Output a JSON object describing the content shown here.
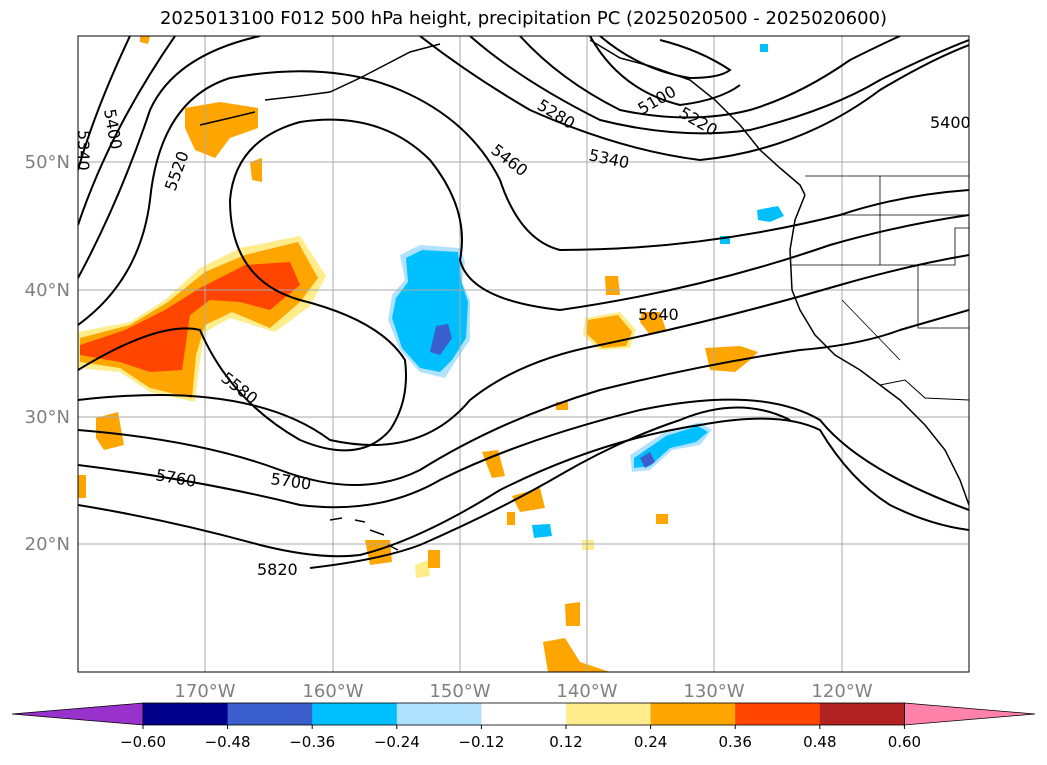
{
  "title": "2025013100 F012 500 hPa height, precipitation PC (2025020500 - 2025020600)",
  "lat_labels": [
    "50°N",
    "40°N",
    "30°N",
    "20°N"
  ],
  "lon_labels": [
    "170°W",
    "160°W",
    "150°W",
    "140°W",
    "130°W",
    "120°W"
  ],
  "contour_labels": [
    "5400",
    "5340",
    "5520",
    "5280",
    "5100",
    "5220",
    "5460",
    "5340",
    "5400",
    "5640",
    "5580",
    "5760",
    "5700",
    "5820"
  ],
  "colorbar": {
    "ticks": [
      "−0.60",
      "−0.48",
      "−0.36",
      "−0.24",
      "−0.12",
      "0.12",
      "0.24",
      "0.36",
      "0.48",
      "0.60"
    ],
    "colors": [
      "#9932cc",
      "#00008b",
      "#3a5fcd",
      "#00bfff",
      "#b0e2ff",
      "#ffffff",
      "#ffec8b",
      "#ffa500",
      "#ff4500",
      "#b22222",
      "#ff82ab"
    ]
  },
  "colors": {
    "gridline": "#aaaaaa",
    "axis_label": "#808080",
    "contour": "#000000"
  }
}
